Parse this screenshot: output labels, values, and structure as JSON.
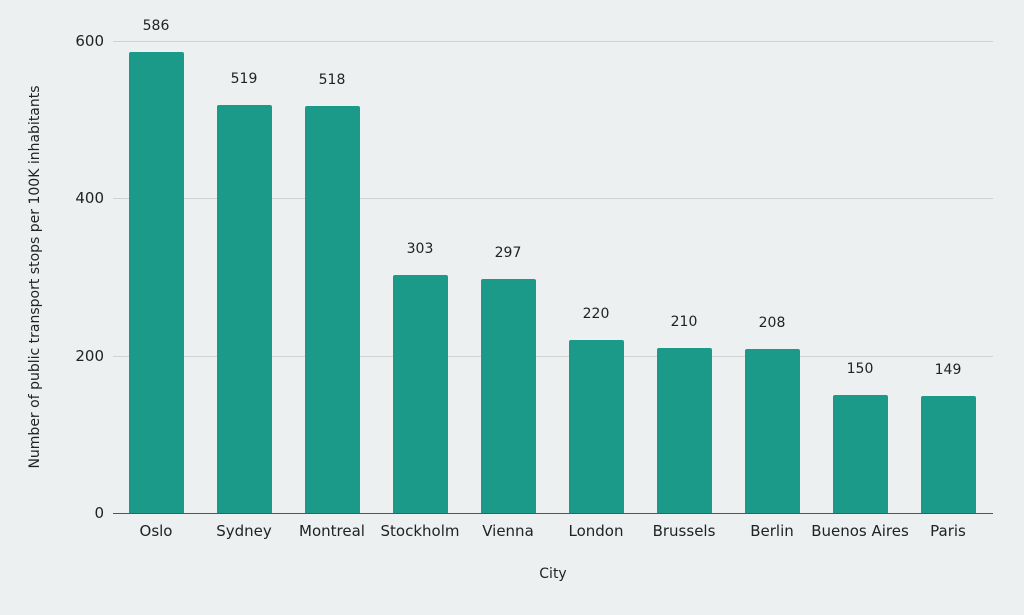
{
  "chart_data": {
    "type": "bar",
    "title": "",
    "xlabel": "City",
    "ylabel": "Number of public transport stops per 100K inhabitants",
    "categories": [
      "Oslo",
      "Sydney",
      "Montreal",
      "Stockholm",
      "Vienna",
      "London",
      "Brussels",
      "Berlin",
      "Buenos Aires",
      "Paris"
    ],
    "values": [
      586,
      519,
      518,
      303,
      297,
      220,
      210,
      208,
      150,
      149
    ],
    "ylim": [
      0,
      600
    ],
    "yticks": [
      "0",
      "200",
      "400",
      "600"
    ],
    "grid": true,
    "legend": null,
    "bar_color": "#1b9989"
  }
}
